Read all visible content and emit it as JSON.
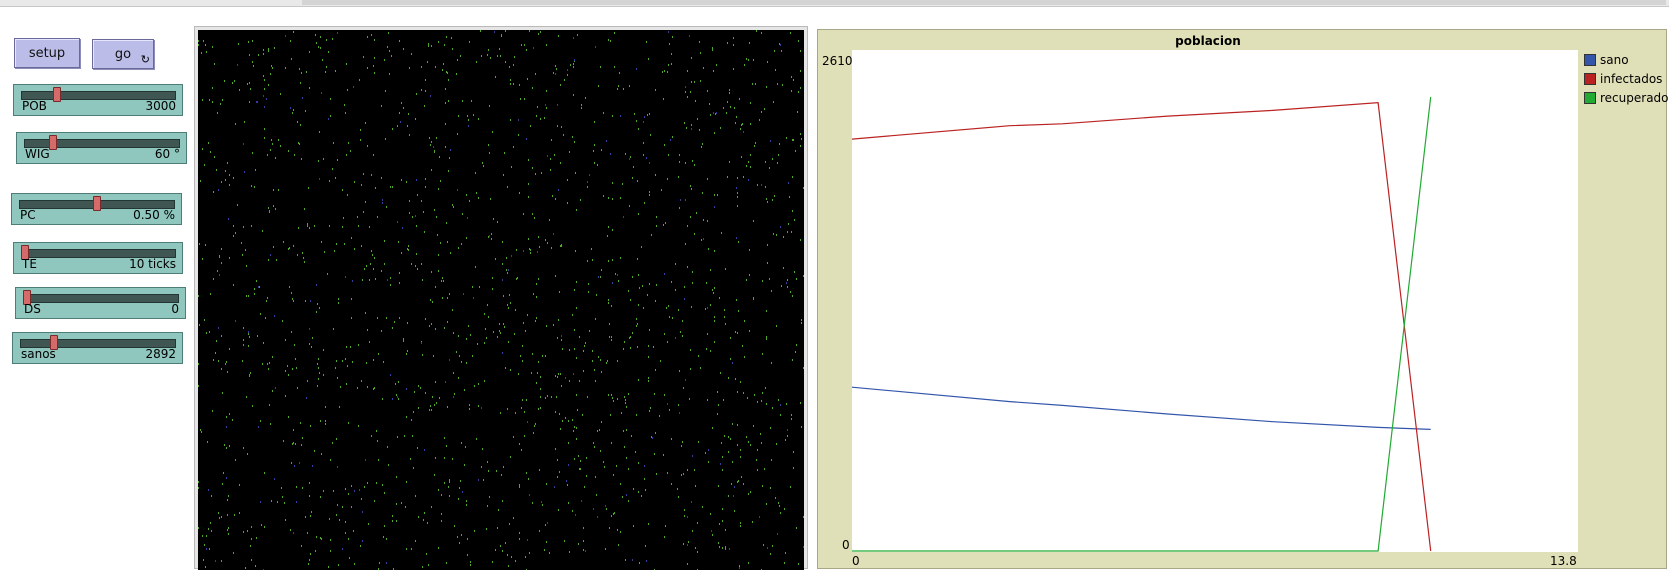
{
  "buttons": {
    "setup": "setup",
    "go": "go",
    "go_icon": "forever-icon"
  },
  "sliders": [
    {
      "name": "POB",
      "value": "3000",
      "fraction": 0.22
    },
    {
      "name": "WIG",
      "value": "60 °",
      "fraction": 0.17
    },
    {
      "name": "PC",
      "value": "0.50 %",
      "fraction": 0.5
    },
    {
      "name": "TE",
      "value": "10 ticks",
      "fraction": 0.0
    },
    {
      "name": "DS",
      "value": "0",
      "fraction": 0.0
    },
    {
      "name": "sanos",
      "value": "2892",
      "fraction": 0.2
    }
  ],
  "world": {
    "background": "#000000",
    "agent_colors": [
      "#4ea82a",
      "#3a3a9a"
    ]
  },
  "plot": {
    "title": "poblacion",
    "y_max_label": "2610",
    "y_min_label": "0",
    "x_min_label": "0",
    "x_max_label": "13.8",
    "legend": [
      {
        "label": "sano",
        "color": "#3355aa"
      },
      {
        "label": "infectados",
        "color": "#bb2222"
      },
      {
        "label": "recuperado",
        "color": "#22aa33"
      }
    ]
  },
  "chart_data": {
    "type": "line",
    "title": "poblacion",
    "xlim": [
      0,
      13.8
    ],
    "ylim": [
      0,
      2610
    ],
    "grid": false,
    "legend_placement": "right",
    "series": [
      {
        "name": "sano",
        "color": "#3355aa",
        "x": [
          0,
          3,
          4,
          6,
          8,
          10,
          11
        ],
        "y": [
          855,
          780,
          760,
          715,
          675,
          645,
          635
        ]
      },
      {
        "name": "infectados",
        "color": "#bb2222",
        "x": [
          0,
          3,
          4,
          6,
          8,
          10,
          11
        ],
        "y": [
          2150,
          2220,
          2230,
          2270,
          2300,
          2340,
          0
        ]
      },
      {
        "name": "recuperado",
        "color": "#22aa33",
        "x": [
          0,
          10,
          11
        ],
        "y": [
          0,
          0,
          2370
        ]
      }
    ]
  }
}
